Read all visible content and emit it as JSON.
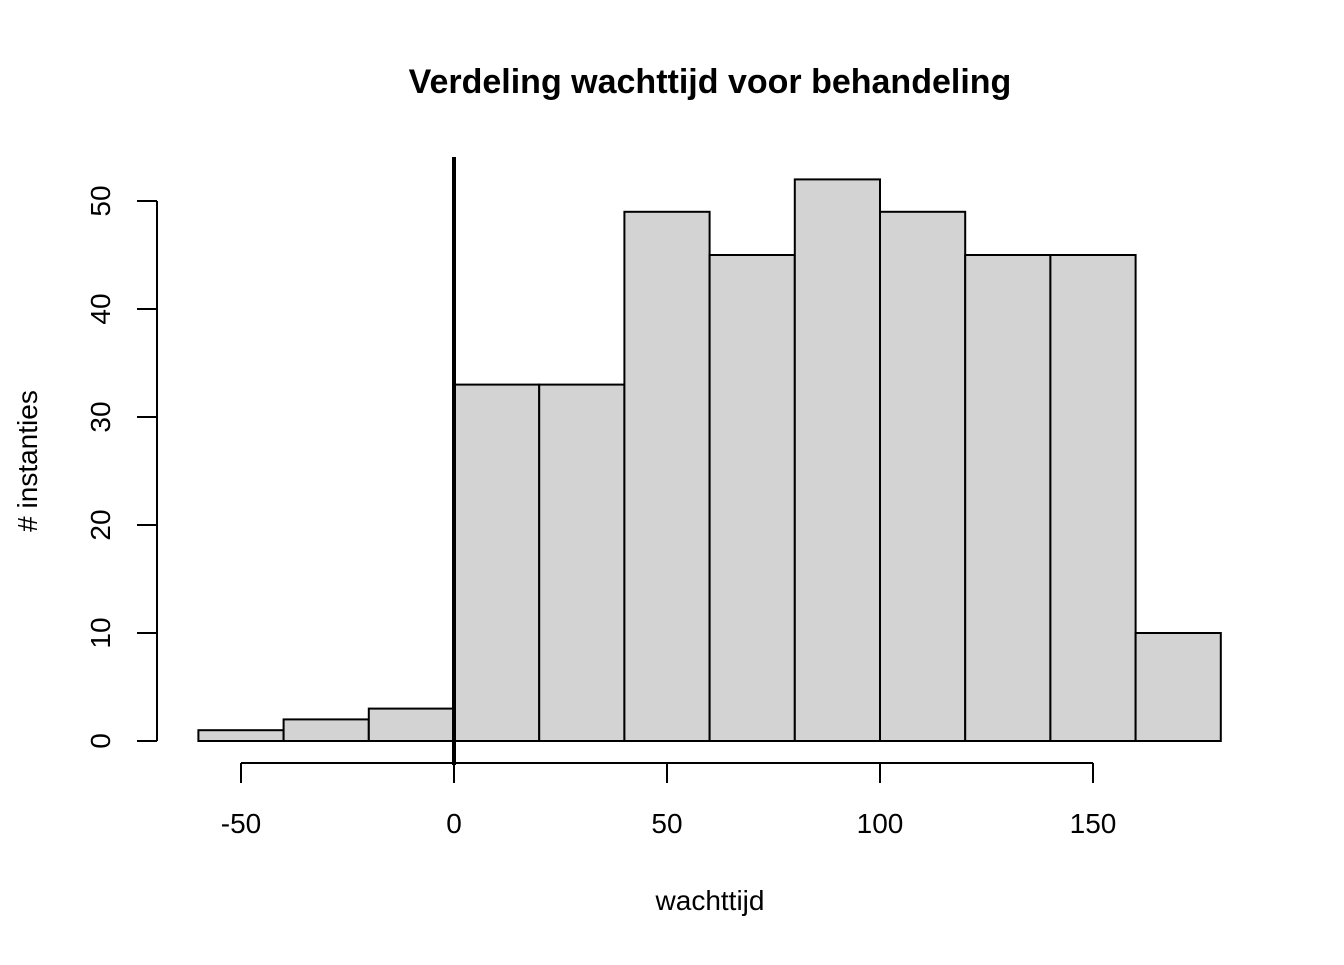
{
  "chart_data": {
    "type": "bar",
    "title": "Verdeling wachttijd voor behandeling",
    "xlabel": "wachttijd",
    "ylabel": "# instanties",
    "bins": [
      {
        "from": -60,
        "to": -40,
        "count": 1
      },
      {
        "from": -40,
        "to": -20,
        "count": 2
      },
      {
        "from": -20,
        "to": 0,
        "count": 3
      },
      {
        "from": 0,
        "to": 20,
        "count": 33
      },
      {
        "from": 20,
        "to": 40,
        "count": 33
      },
      {
        "from": 40,
        "to": 60,
        "count": 49
      },
      {
        "from": 60,
        "to": 80,
        "count": 45
      },
      {
        "from": 80,
        "to": 100,
        "count": 52
      },
      {
        "from": 100,
        "to": 120,
        "count": 49
      },
      {
        "from": 120,
        "to": 140,
        "count": 45
      },
      {
        "from": 140,
        "to": 160,
        "count": 45
      },
      {
        "from": 160,
        "to": 180,
        "count": 10
      }
    ],
    "x_ticks": [
      -50,
      0,
      50,
      100,
      150
    ],
    "y_ticks": [
      0,
      10,
      20,
      30,
      40,
      50
    ],
    "xlim": [
      -60,
      180
    ],
    "ylim": [
      0,
      54
    ],
    "vertical_line": {
      "x": 0,
      "color": "#000000"
    },
    "bar_fill": "#d3d3d3",
    "bar_stroke": "#000000",
    "grid": false
  }
}
